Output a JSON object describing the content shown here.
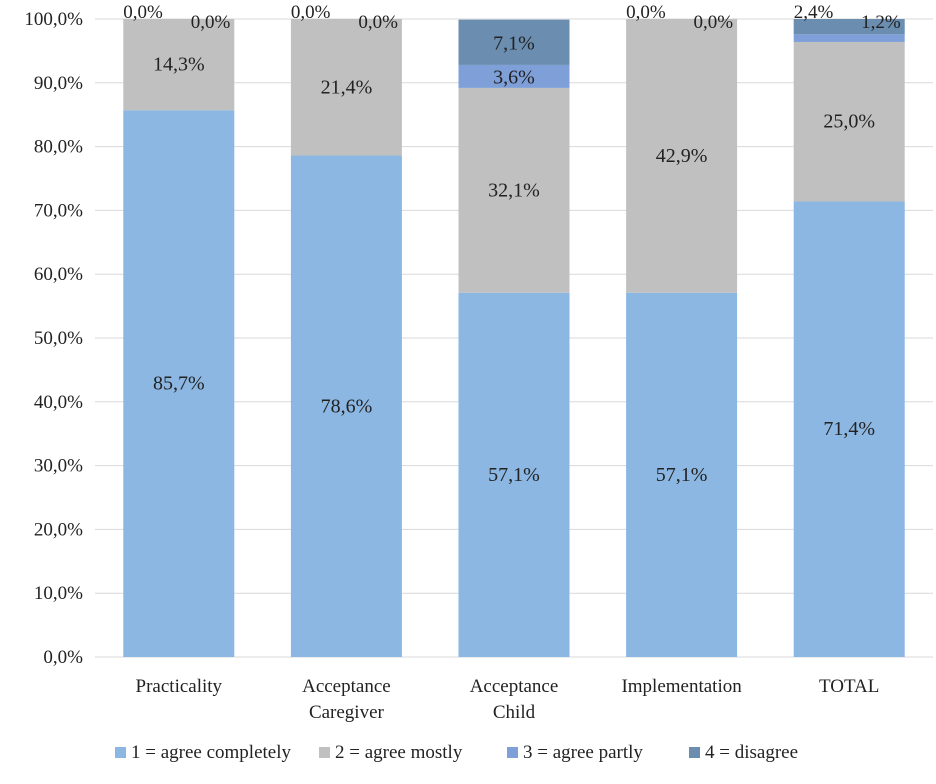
{
  "chart_data": {
    "type": "bar",
    "stacked": true,
    "title": "",
    "xlabel": "",
    "ylabel": "",
    "ylim": [
      0,
      100
    ],
    "y_ticks": [
      0,
      10,
      20,
      30,
      40,
      50,
      60,
      70,
      80,
      90,
      100
    ],
    "y_tick_labels": [
      "0,0%",
      "10,0%",
      "20,0%",
      "30,0%",
      "40,0%",
      "50,0%",
      "60,0%",
      "70,0%",
      "80,0%",
      "90,0%",
      "100,0%"
    ],
    "grid": true,
    "legend_position": "bottom",
    "categories": [
      [
        "Practicality"
      ],
      [
        "Acceptance",
        "Caregiver"
      ],
      [
        "Acceptance",
        "Child"
      ],
      [
        "Implementation"
      ],
      [
        "TOTAL"
      ]
    ],
    "series": [
      {
        "name": "1 = agree completely",
        "color": "#8bb7e2",
        "values": [
          85.7,
          78.6,
          57.1,
          57.1,
          71.4
        ],
        "labels": [
          "85,7%",
          "78,6%",
          "57,1%",
          "57,1%",
          "71,4%"
        ]
      },
      {
        "name": "2 = agree mostly",
        "color": "#c0c0c0",
        "values": [
          14.3,
          21.4,
          32.1,
          42.9,
          25.0
        ],
        "labels": [
          "14,3%",
          "21,4%",
          "32,1%",
          "42,9%",
          "25,0%"
        ]
      },
      {
        "name": "3 = agree partly",
        "color": "#7f9fd9",
        "values": [
          0.0,
          0.0,
          3.6,
          0.0,
          1.2
        ],
        "labels": [
          "0,0%",
          "0,0%",
          "3,6%",
          "0,0%",
          "1,2%"
        ]
      },
      {
        "name": "4 = disagree",
        "color": "#6a8db0",
        "values": [
          0.0,
          0.0,
          7.1,
          0.0,
          2.4
        ],
        "labels": [
          "0,0%",
          "0,0%",
          "7,1%",
          "0,0%",
          "2,4%"
        ]
      }
    ]
  }
}
